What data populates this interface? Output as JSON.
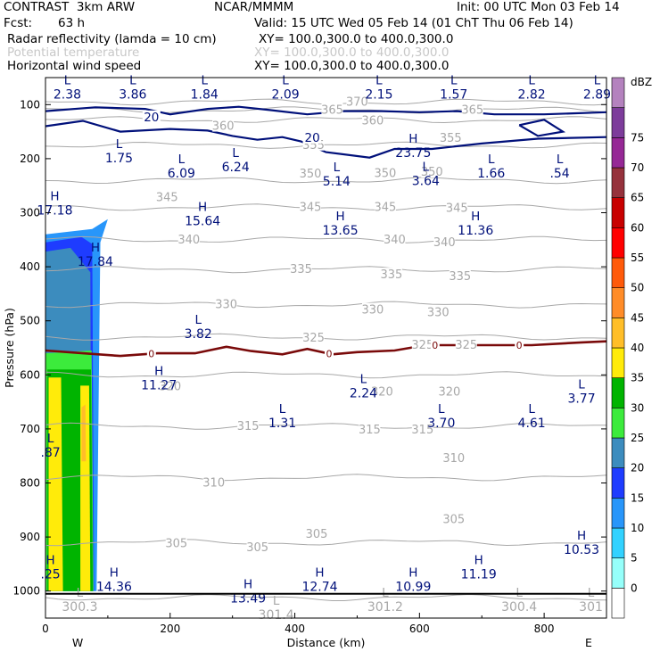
{
  "header": {
    "model": "CONTRAST  3km ARW",
    "producer": "NCAR/MMMM",
    "init": "Init: 00 UTC Mon 03 Feb 14",
    "fcst_label": "Fcst:",
    "fcst_value": "63 h",
    "valid": "Valid: 15 UTC Wed 05 Feb 14 (01 ChT Thu 06 Feb 14)",
    "field1": "Radar reflectivity (lamda = 10 cm)",
    "field1_xy": "XY= 100.0,300.0 to 400.0,300.0",
    "field2": "Potential temperature",
    "field2_xy": "XY= 100.0,300.0 to 400.0,300.0",
    "field3": "Horizontal wind speed",
    "field3_xy": "XY= 100.0,300.0 to 400.0,300.0"
  },
  "colors": {
    "wind": "#00107a",
    "theta": "#a8a8a8",
    "freezing": "#7a0a0a",
    "text_dark": "#000000"
  },
  "chart_data": {
    "type": "heatmap",
    "title": "Radar reflectivity / Potential temperature / Horizontal wind speed cross-section",
    "xlabel": "Distance (km)",
    "ylabel": "Pressure (hPa)",
    "xlim": [
      0,
      900
    ],
    "ylim": [
      1050,
      50
    ],
    "xticks": [
      0,
      200,
      400,
      600,
      800
    ],
    "yticks": [
      100,
      200,
      300,
      400,
      500,
      600,
      700,
      800,
      900,
      1000
    ],
    "x_end_labels": {
      "left": "W",
      "right": "E"
    },
    "colorbar": {
      "unit": "dBZ",
      "levels": [
        "75",
        "70",
        "65",
        "60",
        "55",
        "50",
        "45",
        "40",
        "35",
        "30",
        "25",
        "20",
        "15",
        "10",
        "5",
        "0"
      ],
      "colors": [
        "#ffffff",
        "#96fffa",
        "#32d2ff",
        "#2896fa",
        "#1e3cff",
        "#3c8cbe",
        "#3ceb3c",
        "#00b400",
        "#ffeb0a",
        "#ffbe28",
        "#ff8c28",
        "#ff5a0a",
        "#ff0000",
        "#c80000",
        "#96323c",
        "#962896",
        "#7d3c9b",
        "#b482be"
      ]
    },
    "reflectivity_blobs": [
      {
        "dbz": 10,
        "points": [
          [
            0,
            340
          ],
          [
            75,
            330
          ],
          [
            100,
            312
          ],
          [
            88,
            355
          ],
          [
            82,
            1000
          ],
          [
            0,
            1000
          ]
        ]
      },
      {
        "dbz": 15,
        "points": [
          [
            0,
            355
          ],
          [
            58,
            345
          ],
          [
            75,
            358
          ],
          [
            78,
            1000
          ],
          [
            0,
            1000
          ]
        ]
      },
      {
        "dbz": 20,
        "points": [
          [
            0,
            372
          ],
          [
            40,
            365
          ],
          [
            72,
            410
          ],
          [
            74,
            1000
          ],
          [
            0,
            1000
          ]
        ]
      },
      {
        "dbz": 25,
        "points": [
          [
            0,
            560
          ],
          [
            74,
            555
          ],
          [
            77,
            1000
          ],
          [
            0,
            1000
          ]
        ]
      },
      {
        "dbz": 30,
        "points": [
          [
            3,
            590
          ],
          [
            73,
            590
          ],
          [
            76,
            1000
          ],
          [
            3,
            1000
          ]
        ]
      },
      {
        "dbz": 35,
        "points": [
          [
            5,
            605
          ],
          [
            25,
            605
          ],
          [
            28,
            1000
          ],
          [
            5,
            1000
          ]
        ]
      },
      {
        "dbz": 35,
        "points": [
          [
            56,
            620
          ],
          [
            70,
            620
          ],
          [
            72,
            1000
          ],
          [
            56,
            1000
          ]
        ]
      },
      {
        "dbz": 40,
        "points": [
          [
            58,
            660
          ],
          [
            64,
            655
          ],
          [
            65,
            760
          ],
          [
            58,
            760
          ]
        ]
      }
    ],
    "theta_levels": [
      {
        "label": "300",
        "y": 1012
      },
      {
        "label": "305",
        "y": 910
      },
      {
        "label": "310",
        "y": 790
      },
      {
        "label": "315",
        "y": 695
      },
      {
        "label": "320",
        "y": 600
      },
      {
        "label": "325",
        "y": 530
      },
      {
        "label": "330",
        "y": 470
      },
      {
        "label": "335",
        "y": 405
      },
      {
        "label": "340",
        "y": 350
      },
      {
        "label": "345",
        "y": 290
      },
      {
        "label": "350",
        "y": 240
      },
      {
        "label": "355",
        "y": 175
      },
      {
        "label": "360",
        "y": 128
      },
      {
        "label": "365",
        "y": 110
      },
      {
        "label": "370",
        "y": 95
      }
    ],
    "theta_contour_labels": [
      {
        "text": "305",
        "x": 210,
        "y": 912
      },
      {
        "text": "305",
        "x": 340,
        "y": 920
      },
      {
        "text": "305",
        "x": 435,
        "y": 895
      },
      {
        "text": "305",
        "x": 655,
        "y": 868
      },
      {
        "text": "310",
        "x": 270,
        "y": 800
      },
      {
        "text": "310",
        "x": 655,
        "y": 755
      },
      {
        "text": "315",
        "x": 325,
        "y": 695
      },
      {
        "text": "315",
        "x": 520,
        "y": 702
      },
      {
        "text": "315",
        "x": 605,
        "y": 702
      },
      {
        "text": "320",
        "x": 200,
        "y": 622
      },
      {
        "text": "320",
        "x": 540,
        "y": 632
      },
      {
        "text": "320",
        "x": 648,
        "y": 632
      },
      {
        "text": "325",
        "x": 430,
        "y": 532
      },
      {
        "text": "325",
        "x": 605,
        "y": 545
      },
      {
        "text": "325",
        "x": 675,
        "y": 545
      },
      {
        "text": "330",
        "x": 290,
        "y": 470
      },
      {
        "text": "330",
        "x": 525,
        "y": 480
      },
      {
        "text": "330",
        "x": 630,
        "y": 485
      },
      {
        "text": "335",
        "x": 410,
        "y": 405
      },
      {
        "text": "335",
        "x": 555,
        "y": 415
      },
      {
        "text": "335",
        "x": 665,
        "y": 418
      },
      {
        "text": "340",
        "x": 230,
        "y": 350
      },
      {
        "text": "340",
        "x": 560,
        "y": 350
      },
      {
        "text": "340",
        "x": 640,
        "y": 355
      },
      {
        "text": "345",
        "x": 195,
        "y": 272
      },
      {
        "text": "345",
        "x": 425,
        "y": 290
      },
      {
        "text": "345",
        "x": 545,
        "y": 290
      },
      {
        "text": "345",
        "x": 660,
        "y": 292
      },
      {
        "text": "350",
        "x": 425,
        "y": 228
      },
      {
        "text": "350",
        "x": 545,
        "y": 227
      },
      {
        "text": "350",
        "x": 620,
        "y": 225
      },
      {
        "text": "355",
        "x": 430,
        "y": 175
      },
      {
        "text": "355",
        "x": 650,
        "y": 162
      },
      {
        "text": "360",
        "x": 285,
        "y": 140
      },
      {
        "text": "360",
        "x": 525,
        "y": 130
      },
      {
        "text": "365",
        "x": 460,
        "y": 110
      },
      {
        "text": "365",
        "x": 685,
        "y": 110
      },
      {
        "text": "370",
        "x": 500,
        "y": 95
      }
    ],
    "wind_contours": [
      {
        "value": "20",
        "points": [
          [
            0,
            140
          ],
          [
            60,
            130
          ],
          [
            120,
            150
          ],
          [
            200,
            145
          ],
          [
            260,
            148
          ],
          [
            300,
            158
          ],
          [
            340,
            165
          ],
          [
            380,
            160
          ],
          [
            410,
            168
          ],
          [
            450,
            188
          ],
          [
            520,
            198
          ],
          [
            560,
            182
          ],
          [
            620,
            182
          ],
          [
            700,
            172
          ],
          [
            790,
            163
          ],
          [
            900,
            160
          ]
        ]
      },
      {
        "value": "20",
        "points": [
          [
            0,
            112
          ],
          [
            80,
            105
          ],
          [
            160,
            108
          ],
          [
            200,
            118
          ],
          [
            260,
            108
          ],
          [
            310,
            104
          ],
          [
            360,
            110
          ],
          [
            420,
            118
          ],
          [
            480,
            112
          ],
          [
            540,
            112
          ],
          [
            600,
            114
          ],
          [
            660,
            112
          ],
          [
            720,
            118
          ],
          [
            800,
            118
          ],
          [
            900,
            114
          ]
        ]
      },
      {
        "value": "20",
        "points": [
          [
            760,
            138
          ],
          [
            800,
            128
          ],
          [
            830,
            150
          ],
          [
            790,
            158
          ],
          [
            760,
            138
          ]
        ]
      }
    ],
    "wind_contour_labels": [
      {
        "text": "20",
        "x": 170,
        "y": 124
      },
      {
        "text": "20",
        "x": 428,
        "y": 162
      }
    ],
    "freezing_level": {
      "label": "0",
      "points": [
        [
          0,
          555
        ],
        [
          60,
          560
        ],
        [
          120,
          565
        ],
        [
          180,
          560
        ],
        [
          240,
          560
        ],
        [
          290,
          548
        ],
        [
          330,
          556
        ],
        [
          380,
          562
        ],
        [
          420,
          552
        ],
        [
          460,
          562
        ],
        [
          500,
          558
        ],
        [
          560,
          555
        ],
        [
          610,
          545
        ],
        [
          660,
          545
        ],
        [
          720,
          545
        ],
        [
          780,
          545
        ],
        [
          860,
          540
        ],
        [
          900,
          538
        ]
      ],
      "label_positions": [
        170,
        455,
        625,
        760
      ]
    },
    "extrema": [
      {
        "kind": "L",
        "value": "2.38",
        "x": 35,
        "y": 72
      },
      {
        "kind": "L",
        "value": "3.86",
        "x": 140,
        "y": 72
      },
      {
        "kind": "L",
        "value": "1.84",
        "x": 255,
        "y": 72
      },
      {
        "kind": "L",
        "value": "2.09",
        "x": 385,
        "y": 72
      },
      {
        "kind": "L",
        "value": "2.15",
        "x": 535,
        "y": 72
      },
      {
        "kind": "L",
        "value": "1.57",
        "x": 655,
        "y": 72
      },
      {
        "kind": "L",
        "value": "2.82",
        "x": 780,
        "y": 72
      },
      {
        "kind": "L",
        "value": "2.89",
        "x": 885,
        "y": 72
      },
      {
        "kind": "L",
        "value": "1.75",
        "x": 118,
        "y": 190
      },
      {
        "kind": "L",
        "value": "6.09",
        "x": 218,
        "y": 218
      },
      {
        "kind": "L",
        "value": "6.24",
        "x": 305,
        "y": 207
      },
      {
        "kind": "H",
        "value": "23.75",
        "x": 590,
        "y": 180
      },
      {
        "kind": "L",
        "value": "5.14",
        "x": 467,
        "y": 233
      },
      {
        "kind": "L",
        "value": "3.64",
        "x": 610,
        "y": 232
      },
      {
        "kind": "L",
        "value": "1.66",
        "x": 715,
        "y": 218
      },
      {
        "kind": "L",
        "value": ".54",
        "x": 825,
        "y": 218
      },
      {
        "kind": "H",
        "value": "17.18",
        "x": 15,
        "y": 287
      },
      {
        "kind": "H",
        "value": "15.64",
        "x": 252,
        "y": 307
      },
      {
        "kind": "H",
        "value": "13.65",
        "x": 473,
        "y": 324
      },
      {
        "kind": "H",
        "value": "11.36",
        "x": 690,
        "y": 324
      },
      {
        "kind": "H",
        "value": "17.84",
        "x": 80,
        "y": 382
      },
      {
        "kind": "L",
        "value": "3.82",
        "x": 245,
        "y": 515
      },
      {
        "kind": "H",
        "value": "11.27",
        "x": 182,
        "y": 610
      },
      {
        "kind": "L",
        "value": "2.24",
        "x": 510,
        "y": 625
      },
      {
        "kind": "L",
        "value": "1.31",
        "x": 380,
        "y": 680
      },
      {
        "kind": "L",
        "value": "3.70",
        "x": 635,
        "y": 680
      },
      {
        "kind": "L",
        "value": "4.61",
        "x": 780,
        "y": 680
      },
      {
        "kind": "L",
        "value": "3.77",
        "x": 860,
        "y": 635
      },
      {
        "kind": "L",
        "value": ".87",
        "x": 8,
        "y": 735
      },
      {
        "kind": "H",
        "value": "10.53",
        "x": 860,
        "y": 915
      },
      {
        "kind": "H",
        "value": "11.19",
        "x": 695,
        "y": 960
      },
      {
        "kind": "H",
        "value": "14.36",
        "x": 110,
        "y": 983
      },
      {
        "kind": "H",
        "value": "12.74",
        "x": 440,
        "y": 983
      },
      {
        "kind": "H",
        "value": "10.99",
        "x": 590,
        "y": 983
      },
      {
        "kind": "H",
        "value": "13.49",
        "x": 325,
        "y": 1005
      },
      {
        "kind": "H",
        "value": ".25",
        "x": 8,
        "y": 960
      }
    ],
    "theta_extrema": [
      {
        "kind": "L",
        "value": "300.3",
        "x": 55,
        "y": 1020
      },
      {
        "kind": "L",
        "value": "301.4",
        "x": 370,
        "y": 1035
      },
      {
        "kind": "L",
        "value": "301.2",
        "x": 545,
        "y": 1020
      },
      {
        "kind": "L",
        "value": "300.4",
        "x": 760,
        "y": 1020
      },
      {
        "kind": "L",
        "value": "301",
        "x": 875,
        "y": 1020
      }
    ]
  }
}
